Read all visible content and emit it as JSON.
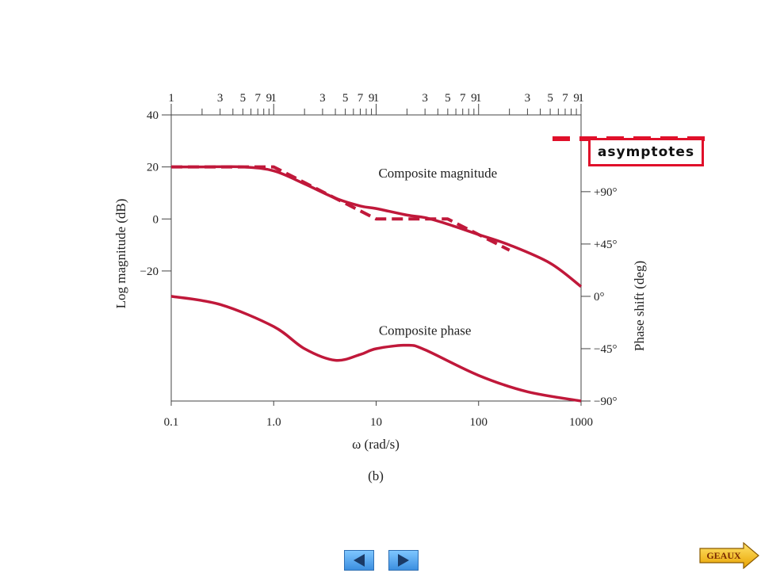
{
  "chart_data": {
    "type": "line",
    "subfigure_label": "(b)",
    "xlabel": "ω (rad/s)",
    "x_scale": "log",
    "xlim": [
      0.1,
      1000
    ],
    "x_ticks": [
      "0.1",
      "1.0",
      "10",
      "100",
      "1000"
    ],
    "top_axis_ticks": [
      "1",
      "3",
      "5",
      "7",
      "9",
      "1",
      "3",
      "5",
      "7",
      "9",
      "1",
      "3",
      "5",
      "7",
      "9",
      "1",
      "3",
      "5",
      "7",
      "9",
      "1"
    ],
    "ylabel_left": "Log magnitude (dB)",
    "ylim_left": [
      -70,
      40
    ],
    "y_ticks_left": [
      "40",
      "20",
      "0",
      "−20"
    ],
    "ylabel_right": "Phase shift (deg)",
    "ylim_right": [
      -90,
      156
    ],
    "y_ticks_right": [
      "+90°",
      "+45°",
      "0°",
      "−45°",
      "−90°"
    ],
    "series": [
      {
        "name": "Composite magnitude",
        "axis": "left",
        "style": "solid",
        "x": [
          0.1,
          0.2,
          0.5,
          1,
          2,
          4,
          7,
          10,
          20,
          30,
          50,
          100,
          200,
          500,
          1000
        ],
        "y": [
          20,
          20,
          20,
          18.5,
          13.5,
          8,
          5,
          4,
          1.5,
          0.5,
          -2,
          -6,
          -10,
          -17,
          -26
        ]
      },
      {
        "axis": "left",
        "style": "dashed",
        "x": [
          0.1,
          1,
          10,
          50,
          100,
          200
        ],
        "y": [
          20,
          20,
          0,
          0,
          -6,
          -12
        ]
      },
      {
        "name": "Composite phase",
        "axis": "right",
        "style": "solid",
        "x": [
          0.1,
          0.3,
          1,
          2,
          4,
          7,
          10,
          20,
          30,
          100,
          300,
          1000
        ],
        "y": [
          0,
          -7,
          -26,
          -45,
          -55,
          -50,
          -45,
          -42,
          -46,
          -68,
          -82,
          -90
        ]
      }
    ],
    "annotations": [
      {
        "text": "Composite magnitude",
        "x": 40,
        "y": 16,
        "axis": "left"
      },
      {
        "text": "Composite phase",
        "x": 30,
        "y": -33,
        "axis": "right"
      }
    ],
    "legend": {
      "text": "asymptotes",
      "placement": "top-right"
    },
    "line_color": "#c0183a"
  },
  "nav": {
    "geaux_label": "GEAUX"
  }
}
